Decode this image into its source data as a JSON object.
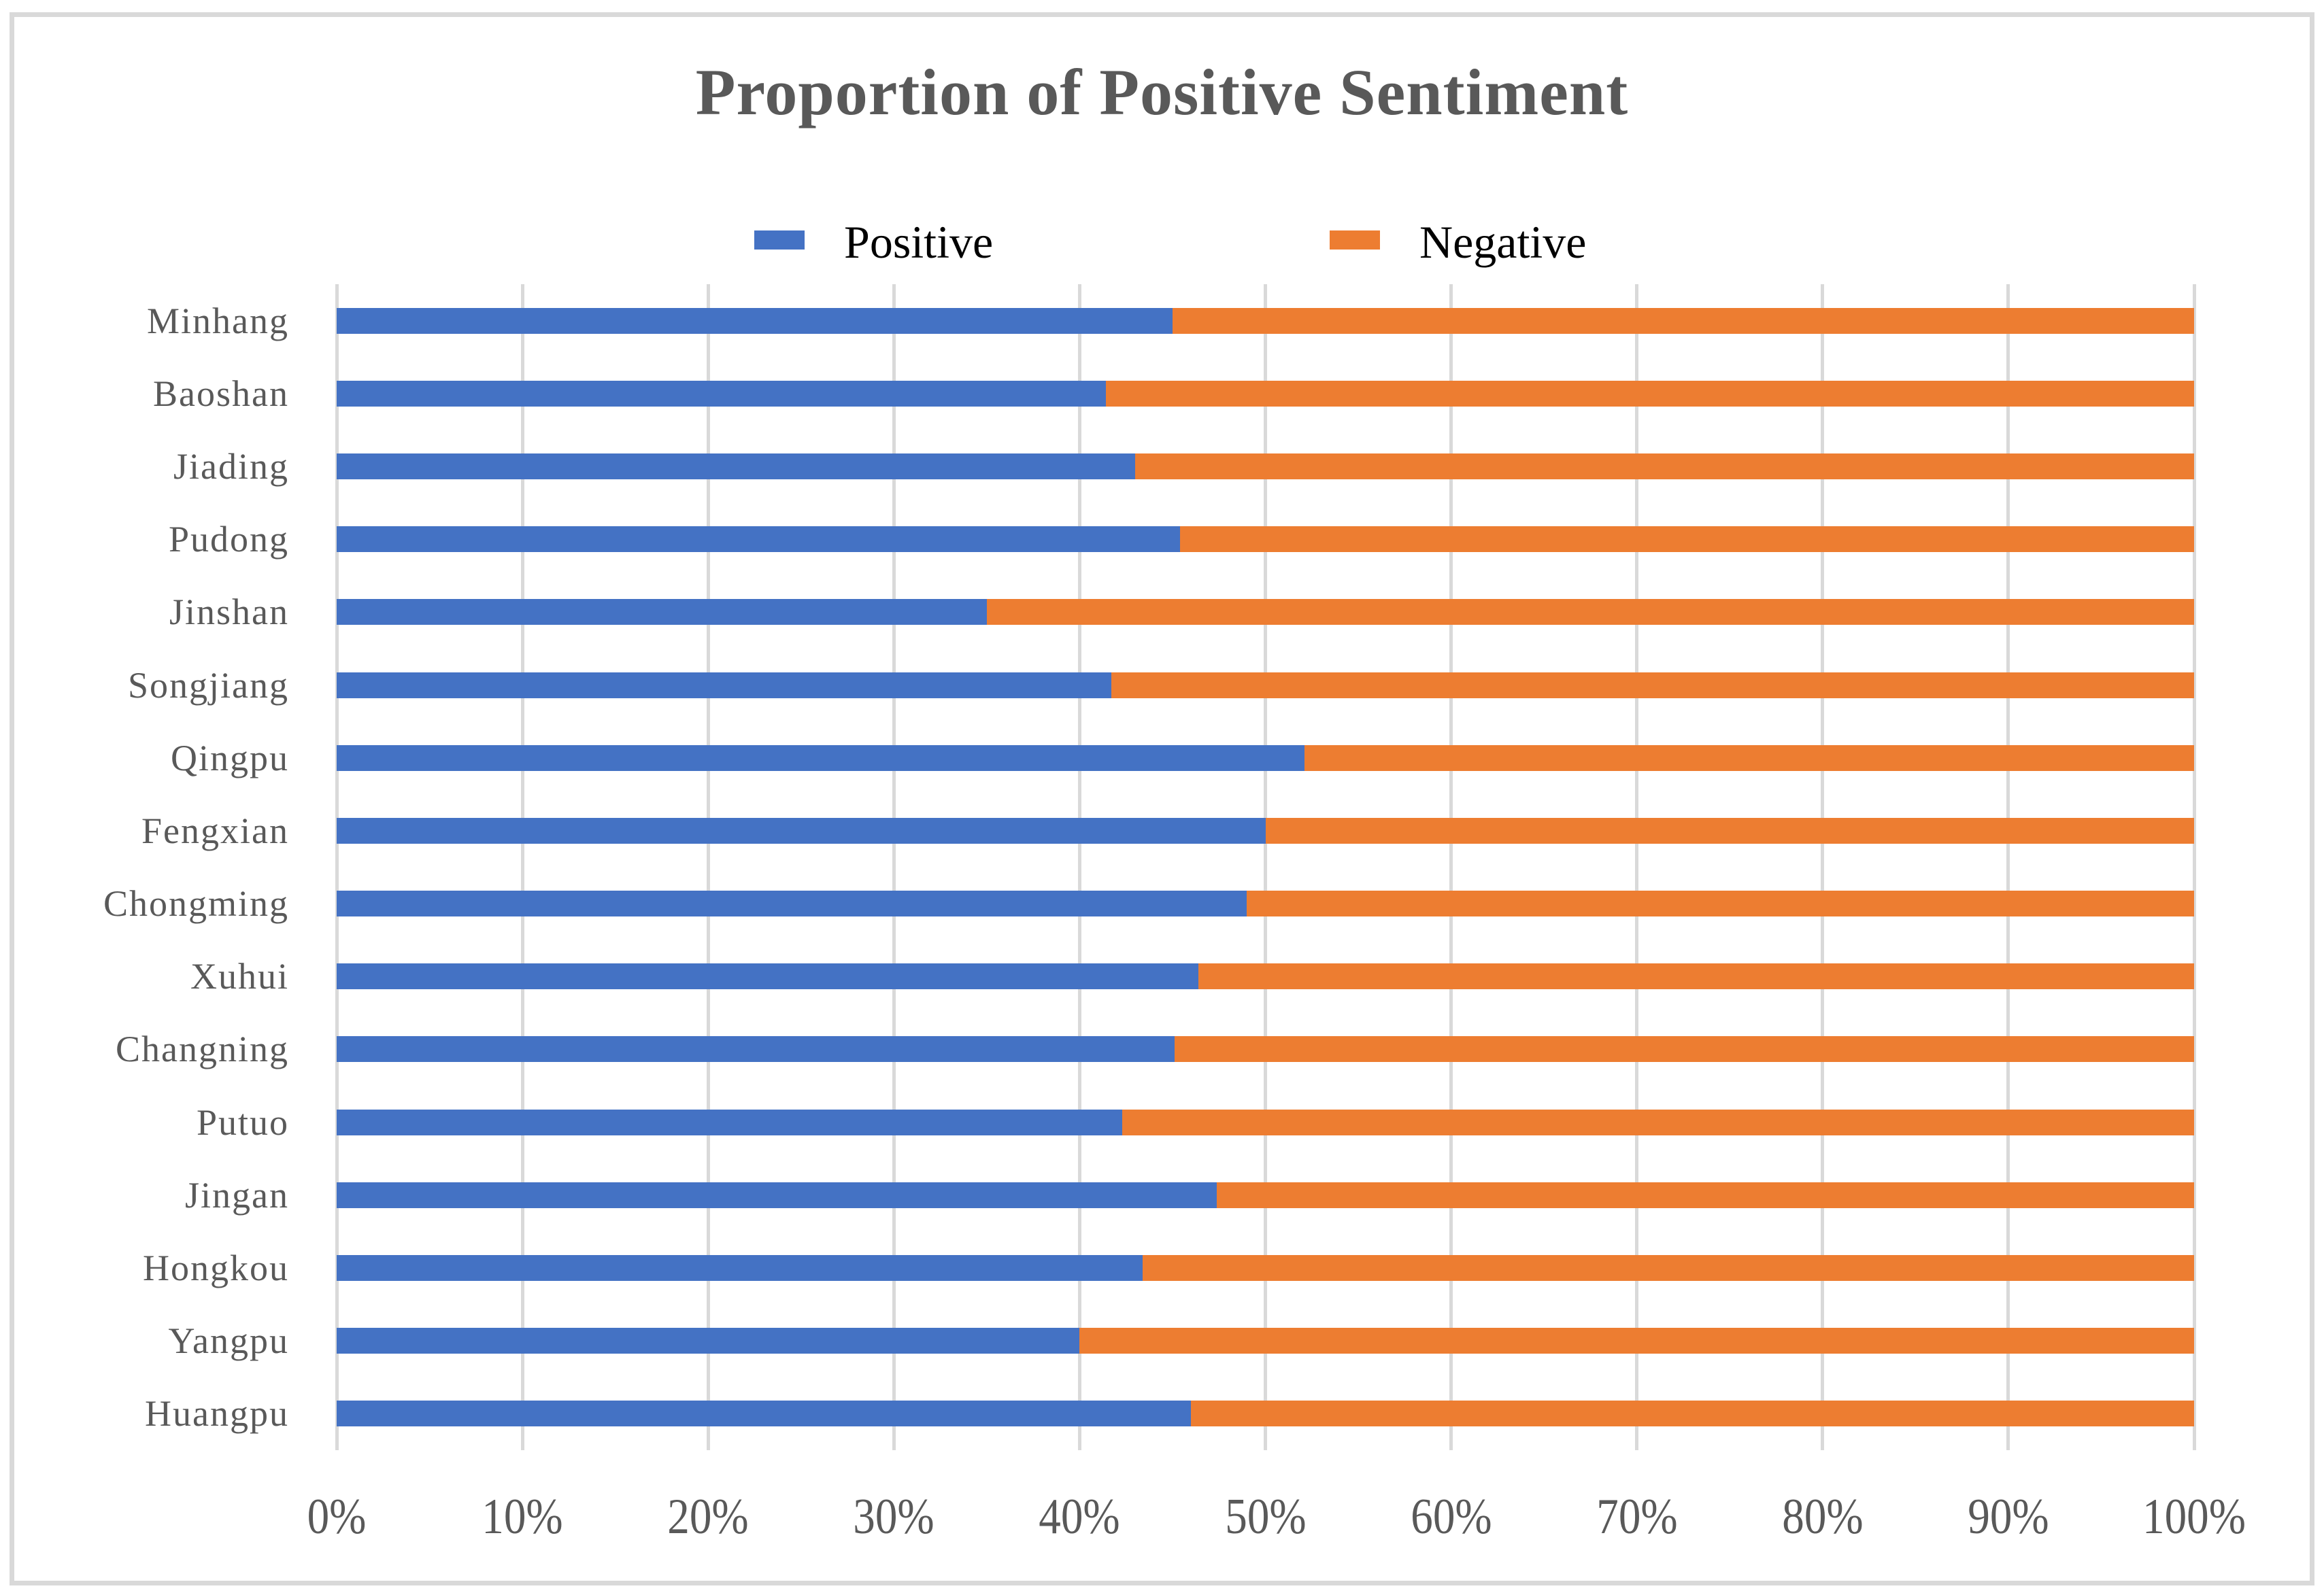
{
  "chart_data": {
    "type": "bar",
    "orientation": "horizontal",
    "stacked": true,
    "title": "Proportion of Positive Sentiment",
    "categories": [
      "Minhang",
      "Baoshan",
      "Jiading",
      "Pudong",
      "Jinshan",
      "Songjiang",
      "Qingpu",
      "Fengxian",
      "Chongming",
      "Xuhui",
      "Changning",
      "Putuo",
      "Jingan",
      "Hongkou",
      "Yangpu",
      "Huangpu"
    ],
    "series": [
      {
        "name": "Positive",
        "color": "#4472C4",
        "values": [
          45.0,
          41.4,
          43.0,
          45.4,
          35.0,
          41.7,
          52.1,
          50.0,
          49.0,
          46.4,
          45.1,
          42.3,
          47.4,
          43.4,
          40.0,
          46.0
        ]
      },
      {
        "name": "Negative",
        "color": "#ED7D31",
        "values": [
          55.0,
          58.6,
          57.0,
          54.6,
          65.0,
          58.3,
          47.9,
          50.0,
          51.0,
          53.6,
          54.9,
          57.7,
          52.6,
          56.6,
          60.0,
          54.0
        ]
      }
    ],
    "x_axis": {
      "min": 0,
      "max": 100,
      "tick_labels": [
        "0%",
        "10%",
        "20%",
        "30%",
        "40%",
        "50%",
        "60%",
        "70%",
        "80%",
        "90%",
        "100%"
      ]
    },
    "legend": {
      "position": "top",
      "entries": [
        "Positive",
        "Negative"
      ]
    },
    "gridlines": "vertical",
    "units": "percent"
  },
  "colors": {
    "grid": "#D9D9D9",
    "axis_text": "#595959",
    "title_text": "#595959",
    "legend_text": "#000000",
    "frame_border": "#D9D9D9",
    "background": "#FFFFFF"
  }
}
